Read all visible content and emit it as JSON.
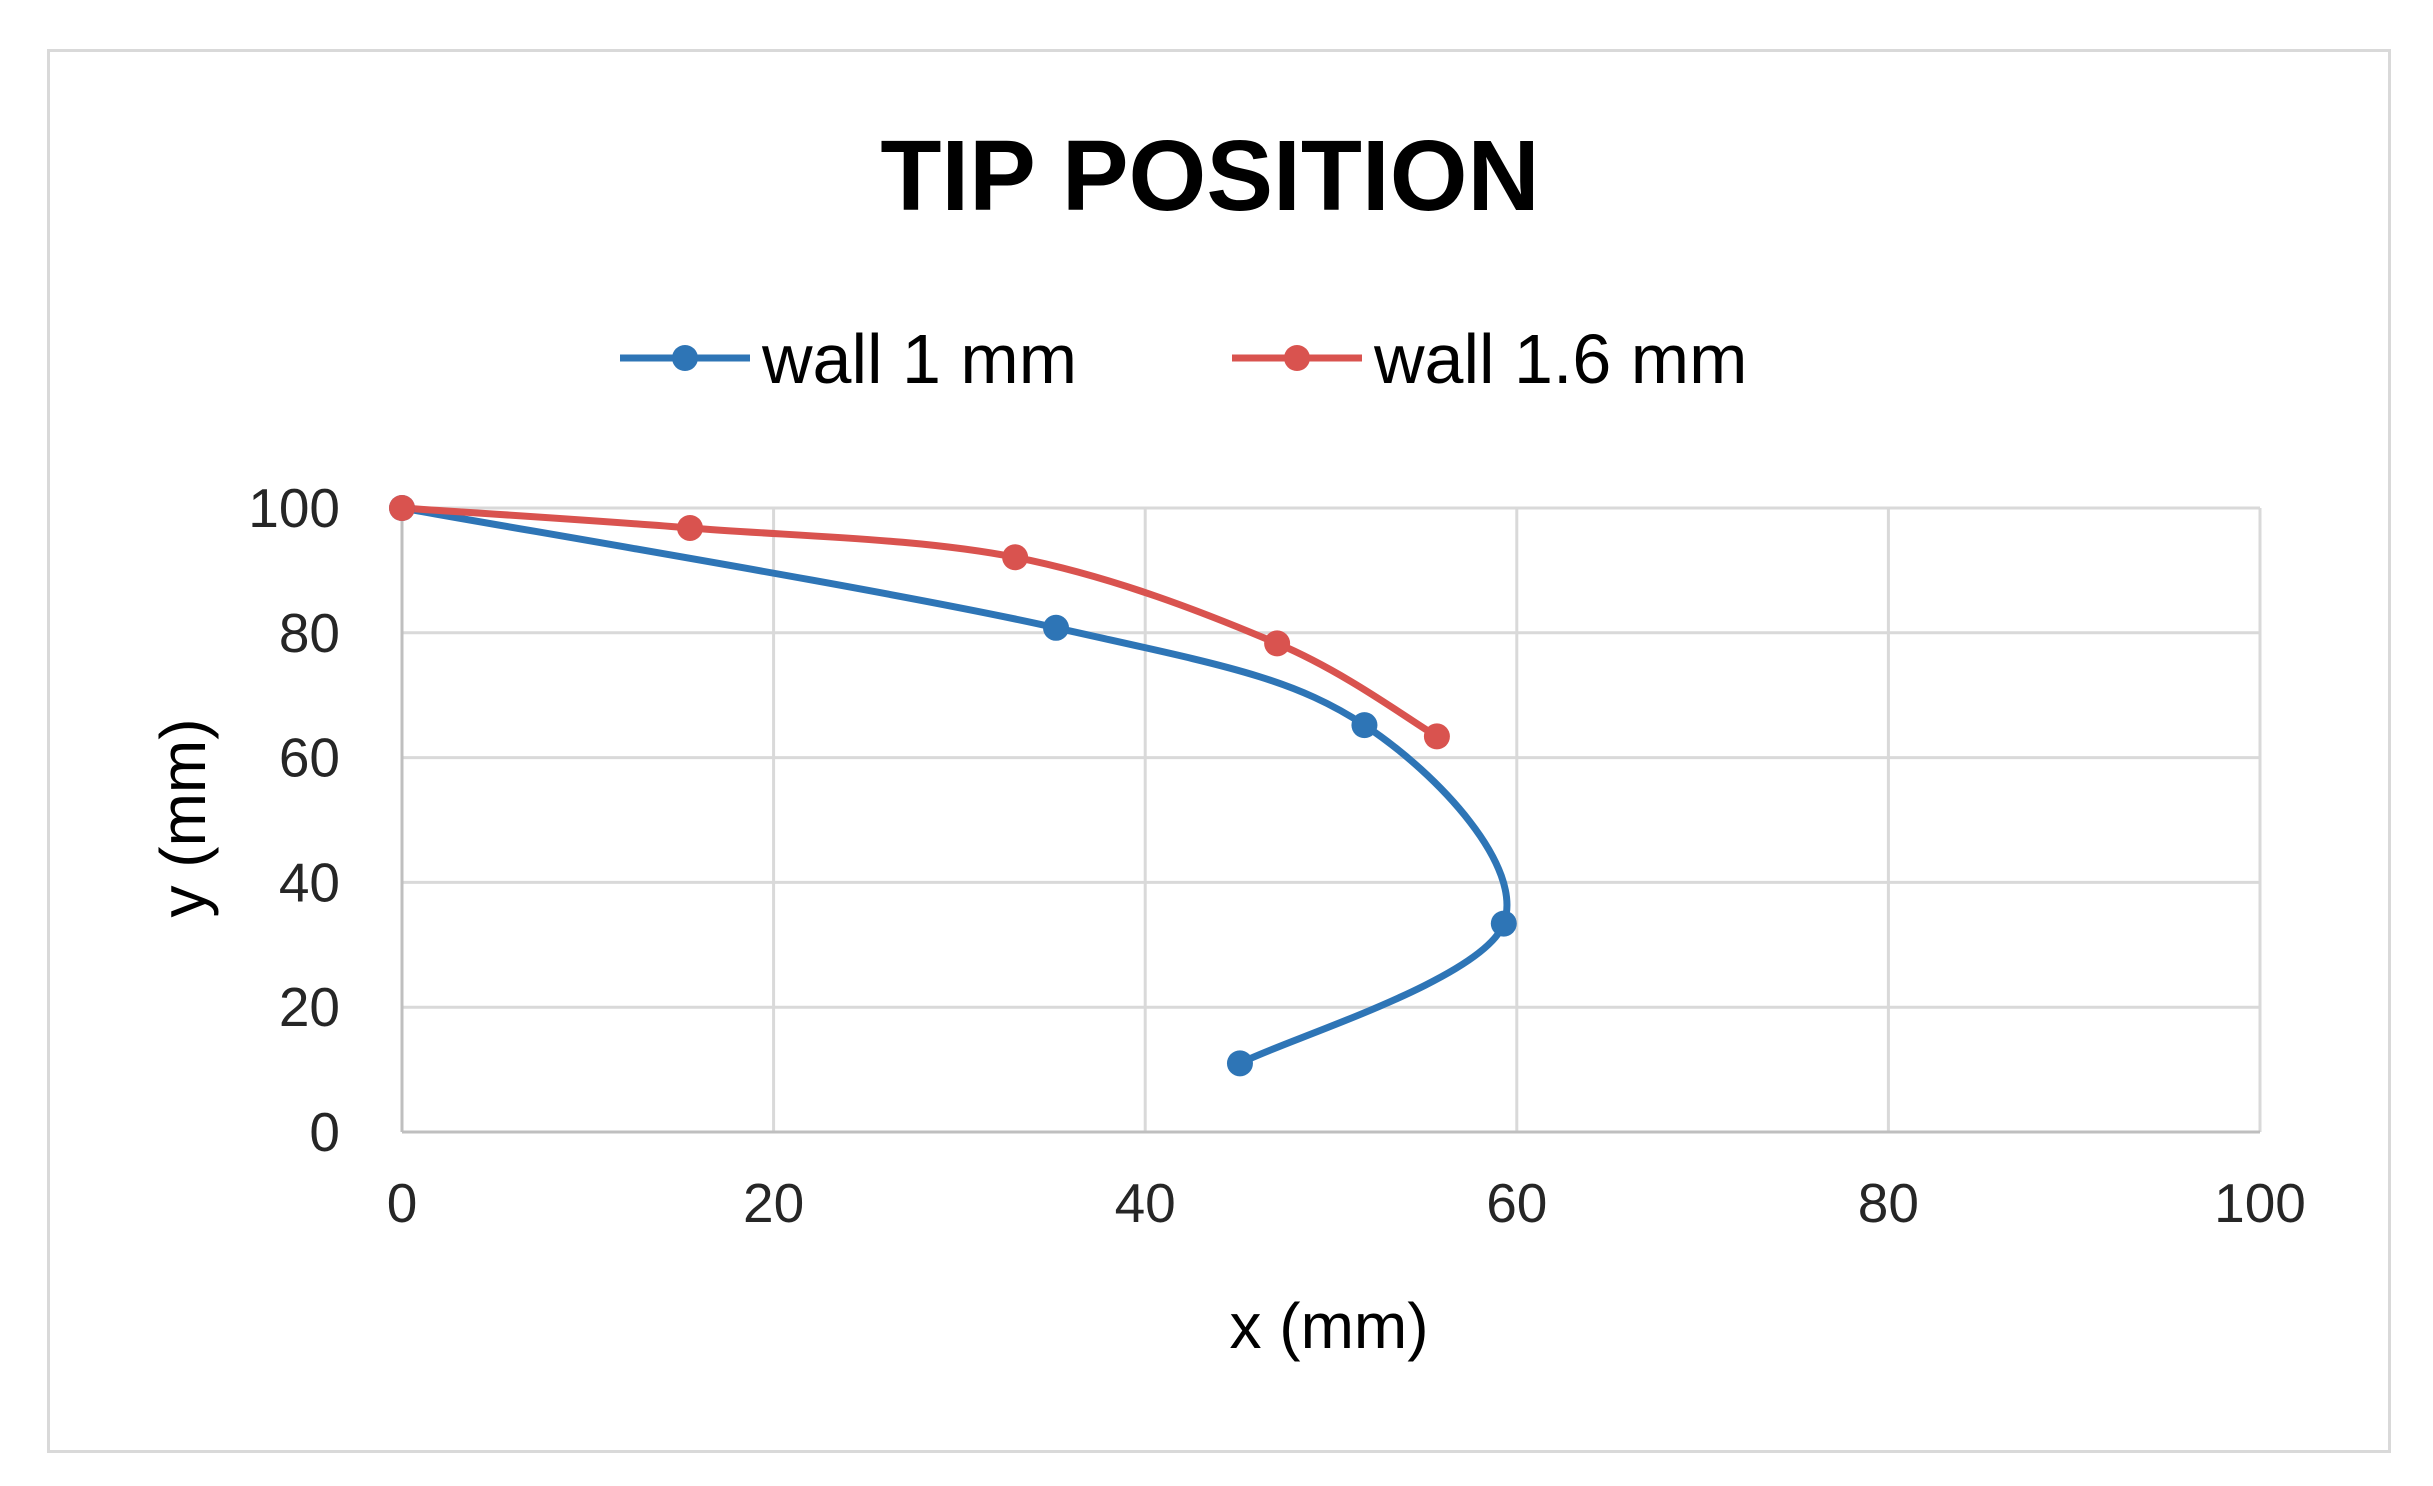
{
  "chart_data": {
    "type": "scatter",
    "title": "TIP POSITION",
    "xlabel": "x (mm)",
    "ylabel": "y (mm)",
    "xlim": [
      0,
      100
    ],
    "ylim": [
      0,
      100
    ],
    "x_ticks": [
      0,
      20,
      40,
      60,
      80,
      100
    ],
    "y_ticks": [
      0,
      20,
      40,
      60,
      80,
      100
    ],
    "grid": true,
    "legend_position": "top",
    "line_style": "smoothed",
    "series": [
      {
        "name": "wall 1 mm",
        "color": "#2e75b6",
        "points": [
          {
            "x": 0,
            "y": 100
          },
          {
            "x": 35.2,
            "y": 80.8
          },
          {
            "x": 51.8,
            "y": 65.2
          },
          {
            "x": 59.3,
            "y": 33.4
          },
          {
            "x": 45.1,
            "y": 11.0
          }
        ]
      },
      {
        "name": "wall 1.6 mm",
        "color": "#d9534f",
        "points": [
          {
            "x": 0,
            "y": 100
          },
          {
            "x": 15.5,
            "y": 96.8
          },
          {
            "x": 33.0,
            "y": 92.1
          },
          {
            "x": 47.1,
            "y": 78.3
          },
          {
            "x": 55.7,
            "y": 63.4
          }
        ]
      }
    ]
  }
}
